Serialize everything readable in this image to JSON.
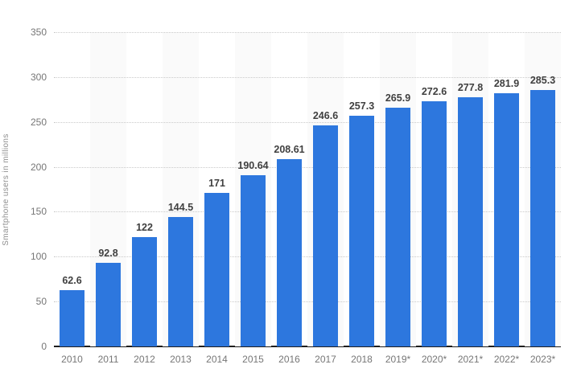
{
  "chart": {
    "y_axis_title": "Smartphone users in millions"
  },
  "chart_data": {
    "type": "bar",
    "title": "",
    "xlabel": "",
    "ylabel": "Smartphone users in millions",
    "categories": [
      "2010",
      "2011",
      "2012",
      "2013",
      "2014",
      "2015",
      "2016",
      "2017",
      "2018",
      "2019*",
      "2020*",
      "2021*",
      "2022*",
      "2023*"
    ],
    "values": [
      62.6,
      92.8,
      122,
      144.5,
      171,
      190.64,
      208.61,
      246.6,
      257.3,
      265.9,
      272.6,
      277.8,
      281.9,
      285.3
    ],
    "value_labels": [
      "62.6",
      "92.8",
      "122",
      "144.5",
      "171",
      "190.64",
      "208.61",
      "246.6",
      "257.3",
      "265.9",
      "272.6",
      "277.8",
      "281.9",
      "285.3"
    ],
    "ylim": [
      0,
      350
    ],
    "yticks": [
      0,
      50,
      100,
      150,
      200,
      250,
      300,
      350
    ],
    "grid": "horizontal-dotted",
    "legend": "none",
    "bar_color": "#2d77de",
    "value_label_color": "#404040",
    "axis_text_color": "#767676",
    "band_color": "#fafafa",
    "alternating_column_bands": true
  }
}
